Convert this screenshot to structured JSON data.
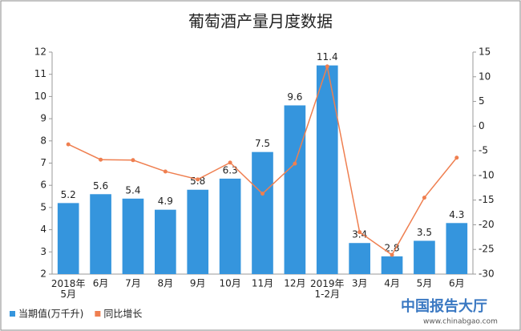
{
  "chart_data": {
    "type": "bar_line",
    "title": "葡萄酒产量月度数据",
    "categories": [
      "2018年\n5月",
      "6月",
      "7月",
      "8月",
      "9月",
      "10月",
      "11月",
      "12月",
      "2019年\n1-2月",
      "3月",
      "4月",
      "5月",
      "6月"
    ],
    "series": [
      {
        "name": "当期值(万千升)",
        "type": "bar",
        "color": "#3595dd",
        "values": [
          5.2,
          5.6,
          5.4,
          4.9,
          5.8,
          6.3,
          7.5,
          9.6,
          11.4,
          3.4,
          2.8,
          3.5,
          4.3
        ]
      },
      {
        "name": "同比增长",
        "type": "line",
        "axis": "y2",
        "color": "#ef7f50",
        "values": [
          -3.7,
          -6.8,
          -6.9,
          -9.2,
          -10.8,
          -7.4,
          -13.7,
          -7.6,
          12.1,
          -21.5,
          -26.1,
          -14.5,
          -6.4
        ]
      }
    ],
    "ylim": [
      2,
      12
    ],
    "yticks": [
      2,
      3,
      4,
      5,
      6,
      7,
      8,
      9,
      10,
      11,
      12
    ],
    "y2lim": [
      -30,
      15
    ],
    "y2ticks": [
      -30,
      -25,
      -20,
      -15,
      -10,
      -5,
      0,
      5,
      10,
      15
    ],
    "grid": false,
    "legend": "bottom-left",
    "watermark": {
      "text": "中国报告大厅",
      "url": "www.chinabgao.com"
    }
  }
}
